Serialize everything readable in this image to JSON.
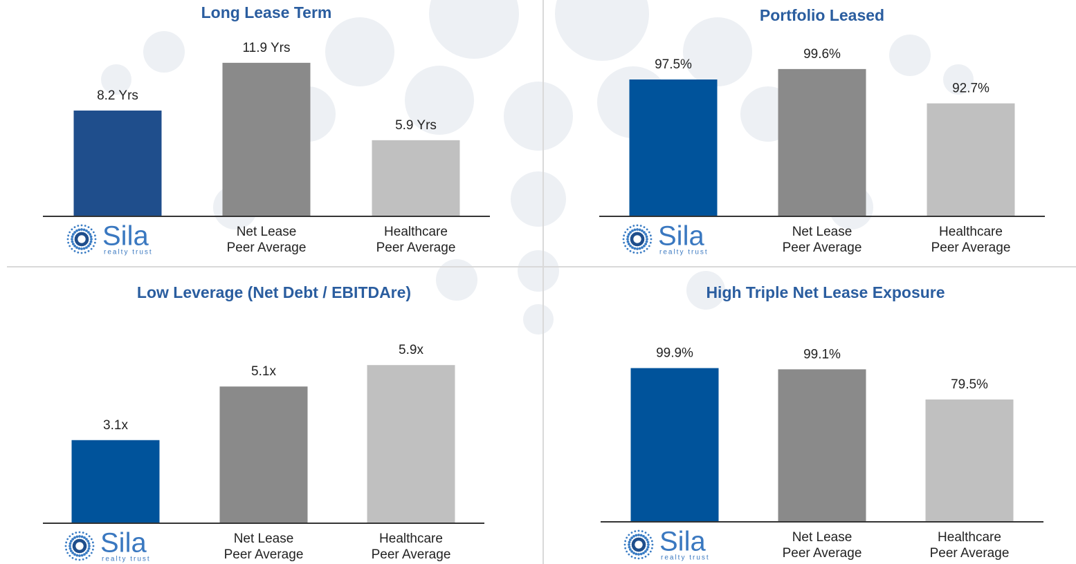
{
  "logo": {
    "name": "Sila",
    "tagline": "realty trust"
  },
  "chart_data": [
    {
      "type": "bar",
      "title": "Long Lease Term",
      "categories": [
        null,
        "Net Lease\nPeer Average",
        "Healthcare\nPeer Average"
      ],
      "values": [
        8.2,
        11.9,
        5.9
      ],
      "value_labels": [
        "8.2 Yrs",
        "11.9 Yrs",
        "5.9 Yrs"
      ],
      "colors": [
        "#1f4e8c",
        "#8a8a8a",
        "#c0c0c0"
      ],
      "ylim": [
        0,
        13.5
      ]
    },
    {
      "type": "bar",
      "title": "Portfolio Leased",
      "categories": [
        null,
        "Net Lease\nPeer Average",
        "Healthcare\nPeer Average"
      ],
      "values": [
        97.5,
        99.6,
        92.7
      ],
      "value_labels": [
        "97.5%",
        "99.6%",
        "92.7%"
      ],
      "colors": [
        "#00539b",
        "#8a8a8a",
        "#c0c0c0"
      ],
      "ylim": [
        70,
        105
      ]
    },
    {
      "type": "bar",
      "title": "Low Leverage (Net Debt / EBITDAre)",
      "categories": [
        null,
        "Net Lease\nPeer Average",
        "Healthcare\nPeer Average"
      ],
      "values": [
        3.1,
        5.1,
        5.9
      ],
      "value_labels": [
        "3.1x",
        "5.1x",
        "5.9x"
      ],
      "colors": [
        "#00539b",
        "#8a8a8a",
        "#c0c0c0"
      ],
      "ylim": [
        0,
        7.4
      ]
    },
    {
      "type": "bar",
      "title": "High Triple Net Lease Exposure",
      "categories": [
        null,
        "Net Lease\nPeer Average",
        "Healthcare\nPeer Average"
      ],
      "values": [
        99.9,
        99.1,
        79.5
      ],
      "value_labels": [
        "99.9%",
        "99.1%",
        "79.5%"
      ],
      "colors": [
        "#00539b",
        "#8a8a8a",
        "#c0c0c0"
      ],
      "ylim": [
        0,
        128
      ]
    }
  ]
}
